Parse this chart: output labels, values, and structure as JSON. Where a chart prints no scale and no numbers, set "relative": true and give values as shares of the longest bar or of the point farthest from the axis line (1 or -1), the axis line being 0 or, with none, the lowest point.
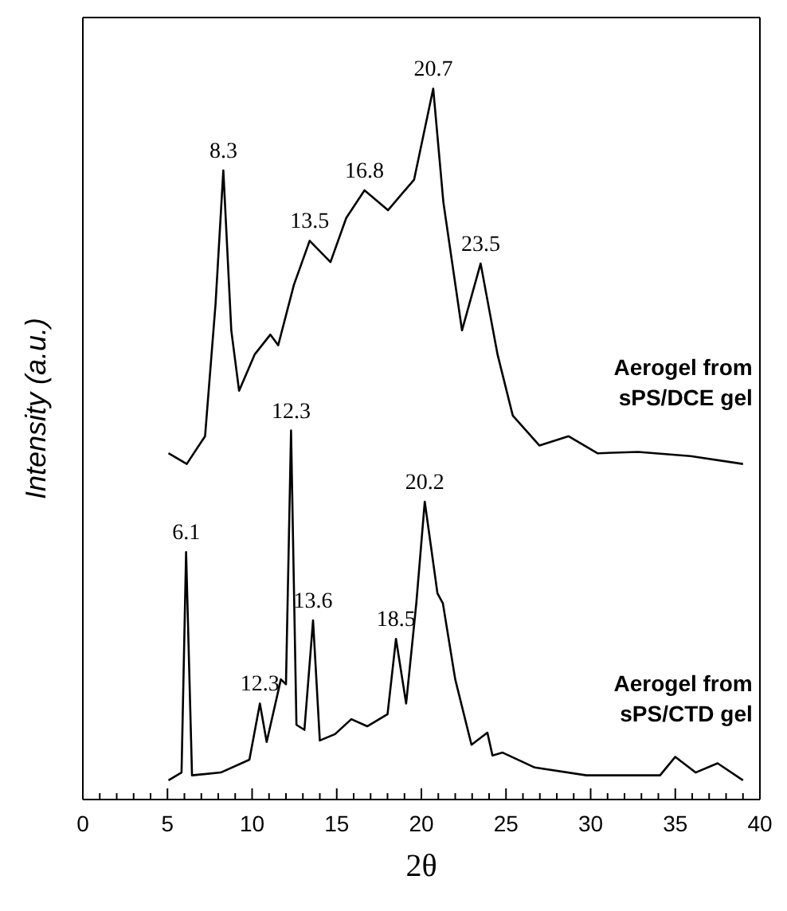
{
  "chart_data": {
    "type": "line",
    "relative": true,
    "xlabel": "2θ",
    "ylabel": "Intensity (a.u.)",
    "xlim": [
      0,
      40
    ],
    "xticks": [
      0,
      {
        "value": 1,
        "label": null
      },
      {
        "value": 2,
        "label": null
      },
      {
        "value": 3,
        "label": null
      },
      {
        "value": 4,
        "label": null
      },
      5,
      {
        "value": 6,
        "label": null
      },
      {
        "value": 7,
        "label": null
      },
      {
        "value": 8,
        "label": null
      },
      {
        "value": 9,
        "label": null
      },
      10,
      {
        "value": 11,
        "label": null
      },
      {
        "value": 12,
        "label": null
      },
      {
        "value": 13,
        "label": null
      },
      {
        "value": 14,
        "label": null
      },
      15,
      {
        "value": 16,
        "label": null
      },
      {
        "value": 17,
        "label": null
      },
      {
        "value": 18,
        "label": null
      },
      {
        "value": 19,
        "label": null
      },
      20,
      {
        "value": 21,
        "label": null
      },
      {
        "value": 22,
        "label": null
      },
      {
        "value": 23,
        "label": null
      },
      {
        "value": 24,
        "label": null
      },
      25,
      {
        "value": 26,
        "label": null
      },
      {
        "value": 27,
        "label": null
      },
      {
        "value": 28,
        "label": null
      },
      {
        "value": 29,
        "label": null
      },
      30,
      {
        "value": 31,
        "label": null
      },
      {
        "value": 32,
        "label": null
      },
      {
        "value": 33,
        "label": null
      },
      {
        "value": 34,
        "label": null
      },
      35,
      {
        "value": 36,
        "label": null
      },
      {
        "value": 37,
        "label": null
      },
      {
        "value": 38,
        "label": null
      },
      {
        "value": 39,
        "label": null
      },
      40
    ],
    "series": [
      {
        "name": "Aerogel from\nsPS/DCE gel",
        "color": "#000000",
        "x": [
          5.06,
          6.14,
          7.22,
          7.84,
          8.3,
          8.77,
          9.23,
          10.15,
          11.08,
          11.54,
          12.47,
          13.4,
          14.63,
          15.56,
          16.64,
          18.03,
          19.57,
          20.7,
          21.3,
          22.4,
          23.5,
          24.5,
          25.4,
          26.97,
          28.7,
          30.4,
          32.8,
          35.9,
          39.0
        ],
        "values": [
          0.487,
          0.472,
          0.511,
          0.697,
          0.885,
          0.66,
          0.575,
          0.626,
          0.654,
          0.639,
          0.724,
          0.786,
          0.756,
          0.818,
          0.857,
          0.829,
          0.872,
          1.0,
          0.84,
          0.66,
          0.754,
          0.626,
          0.54,
          0.498,
          0.511,
          0.487,
          0.489,
          0.483,
          0.472
        ]
      },
      {
        "name": "Aerogel from\nsPS/CTD gel",
        "color": "#000000",
        "x": [
          5.06,
          5.83,
          6.1,
          6.45,
          8.15,
          9.84,
          10.46,
          10.86,
          11.7,
          12.0,
          12.3,
          12.62,
          13.09,
          13.6,
          14.0,
          14.9,
          15.86,
          16.8,
          18.0,
          18.5,
          19.1,
          19.7,
          20.2,
          20.95,
          21.27,
          22.0,
          22.96,
          23.9,
          24.2,
          24.8,
          26.7,
          29.75,
          34.1,
          35.0,
          36.2,
          37.5,
          39.0
        ],
        "values": [
          0.027,
          0.038,
          0.348,
          0.034,
          0.038,
          0.056,
          0.135,
          0.081,
          0.169,
          0.162,
          0.519,
          0.105,
          0.098,
          0.252,
          0.083,
          0.092,
          0.113,
          0.103,
          0.12,
          0.226,
          0.135,
          0.276,
          0.419,
          0.29,
          0.276,
          0.169,
          0.077,
          0.094,
          0.062,
          0.066,
          0.045,
          0.034,
          0.034,
          0.06,
          0.038,
          0.051,
          0.027
        ]
      }
    ],
    "annotations": [
      {
        "text": "8.3",
        "x": 8.3,
        "y": 0.885
      },
      {
        "text": "13.5",
        "x": 13.4,
        "y": 0.786
      },
      {
        "text": "16.8",
        "x": 16.64,
        "y": 0.857
      },
      {
        "text": "20.7",
        "x": 20.7,
        "y": 1.0
      },
      {
        "text": "23.5",
        "x": 23.5,
        "y": 0.754
      },
      {
        "text": "6.1",
        "x": 6.1,
        "y": 0.348
      },
      {
        "text": "12.3",
        "x": 10.46,
        "y": 0.135
      },
      {
        "text": "12.3",
        "x": 12.3,
        "y": 0.519
      },
      {
        "text": "13.6",
        "x": 13.6,
        "y": 0.252
      },
      {
        "text": "18.5",
        "x": 18.5,
        "y": 0.226
      },
      {
        "text": "20.2",
        "x": 20.2,
        "y": 0.419
      }
    ]
  }
}
